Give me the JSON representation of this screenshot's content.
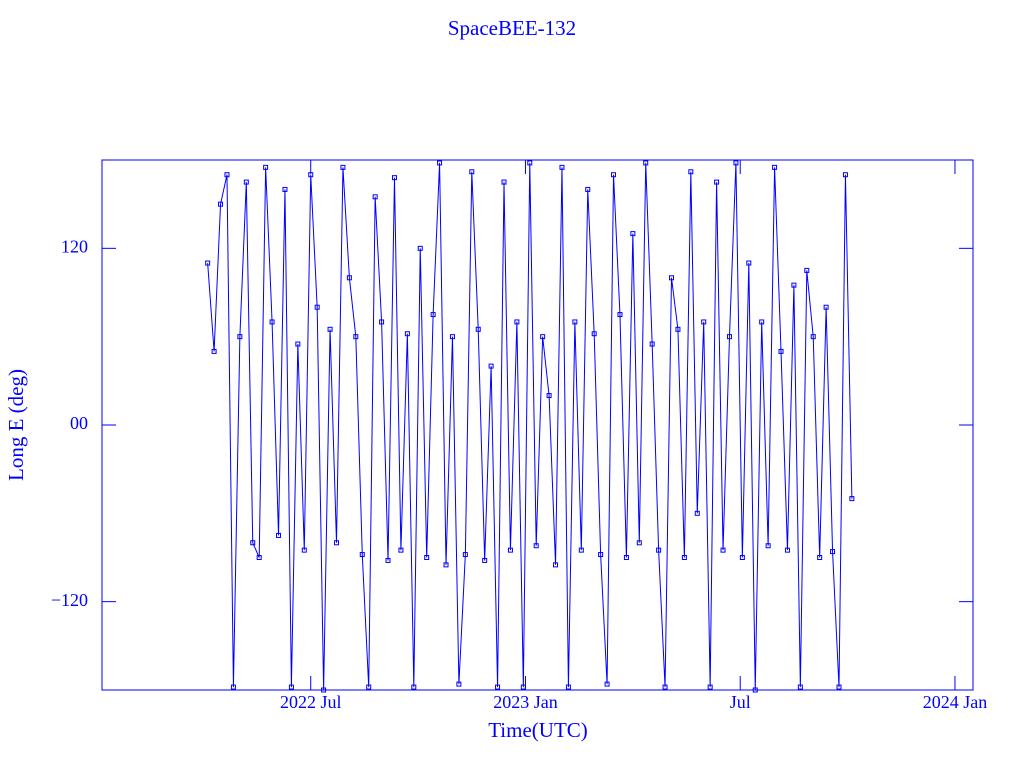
{
  "chart_data": {
    "type": "line",
    "title": "SpaceBEE-132",
    "x_label": "Time(UTC)",
    "y_label": "Long E (deg)",
    "xlim": [
      2022.014,
      2024.042
    ],
    "xticks": [
      {
        "value": 2022.5,
        "label": "2022 Jul"
      },
      {
        "value": 2023.0,
        "label": "2023 Jan"
      },
      {
        "value": 2023.5,
        "label": "Jul"
      },
      {
        "value": 2024.0,
        "label": "2024 Jan"
      }
    ],
    "ylim": [
      -180,
      180
    ],
    "yticks": [
      {
        "value": -120,
        "label": "−120"
      },
      {
        "value": 0,
        "label": "00"
      },
      120
    ],
    "color": "#0000ff",
    "x": [
      2022.26,
      2022.275,
      2022.29,
      2022.305,
      2022.32,
      2022.335,
      2022.35,
      2022.365,
      2022.38,
      2022.395,
      2022.41,
      2022.425,
      2022.44,
      2022.455,
      2022.47,
      2022.485,
      2022.5,
      2022.515,
      2022.53,
      2022.545,
      2022.56,
      2022.575,
      2022.59,
      2022.605,
      2022.62,
      2022.635,
      2022.65,
      2022.665,
      2022.68,
      2022.695,
      2022.71,
      2022.725,
      2022.74,
      2022.755,
      2022.77,
      2022.785,
      2022.8,
      2022.815,
      2022.83,
      2022.845,
      2022.86,
      2022.875,
      2022.89,
      2022.905,
      2022.92,
      2022.935,
      2022.95,
      2022.965,
      2022.98,
      2022.995,
      2023.01,
      2023.025,
      2023.04,
      2023.055,
      2023.07,
      2023.085,
      2023.1,
      2023.115,
      2023.13,
      2023.145,
      2023.16,
      2023.175,
      2023.19,
      2023.205,
      2023.22,
      2023.235,
      2023.25,
      2023.265,
      2023.28,
      2023.295,
      2023.31,
      2023.325,
      2023.34,
      2023.355,
      2023.37,
      2023.385,
      2023.4,
      2023.415,
      2023.43,
      2023.445,
      2023.46,
      2023.475,
      2023.49,
      2023.505,
      2023.52,
      2023.535,
      2023.55,
      2023.565,
      2023.58,
      2023.595,
      2023.61,
      2023.625,
      2023.64,
      2023.655,
      2023.67,
      2023.685,
      2023.7,
      2023.715,
      2023.73,
      2023.745,
      2023.76
    ],
    "values": [
      110,
      50,
      150,
      170,
      -178,
      60,
      165,
      -80,
      -90,
      175,
      70,
      -75,
      160,
      -178,
      55,
      -85,
      170,
      80,
      -180,
      65,
      -80,
      175,
      100,
      60,
      -88,
      -178,
      155,
      70,
      -92,
      168,
      -85,
      62,
      -178,
      120,
      -90,
      75,
      178,
      -95,
      60,
      -176,
      -88,
      172,
      65,
      -92,
      40,
      -178,
      165,
      -85,
      70,
      -178,
      178,
      -82,
      60,
      20,
      -95,
      175,
      -178,
      70,
      -85,
      160,
      62,
      -88,
      -176,
      170,
      75,
      -90,
      130,
      -80,
      178,
      55,
      -85,
      -178,
      100,
      65,
      -90,
      172,
      -60,
      70,
      -178,
      165,
      -85,
      60,
      178,
      -90,
      110,
      -180,
      70,
      -82,
      175,
      50,
      -85,
      95,
      -178,
      105,
      60,
      -90,
      80,
      -86,
      -178,
      170,
      -50
    ]
  }
}
